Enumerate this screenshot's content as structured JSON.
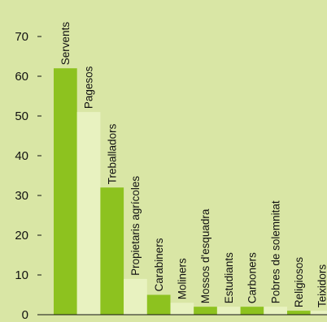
{
  "chart_data": {
    "type": "bar",
    "title": "",
    "xlabel": "",
    "ylabel": "",
    "ylim": [
      0,
      70
    ],
    "yticks": [
      0,
      10,
      20,
      30,
      40,
      50,
      60,
      70
    ],
    "grid": false,
    "categories": [
      "Servents",
      "Pagesos",
      "Treballadors",
      "Propietaris agrícoles",
      "Carabiners",
      "Moliners",
      "Mossos d'esquadra",
      "Estudiants",
      "Carboners",
      "Pobres de solemnitat",
      "Religiosos",
      "Teixidors"
    ],
    "values": [
      62,
      51,
      32,
      9,
      5,
      3,
      2,
      2,
      2,
      2,
      1,
      1
    ],
    "colors": {
      "background": "#d9e6a5",
      "bar_dark": "#8dc21f",
      "bar_light": "#e8f2c0",
      "axis": "#111111"
    }
  }
}
